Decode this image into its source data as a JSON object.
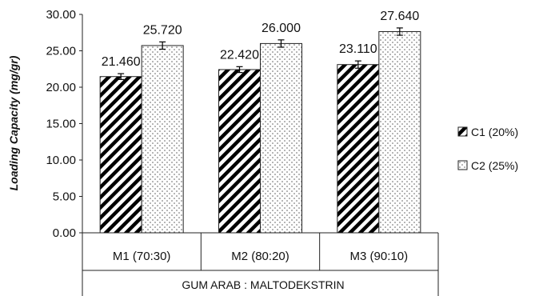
{
  "chart_data": {
    "type": "bar",
    "title": "",
    "xlabel": "GUM ARAB : MALTODEKSTRIN",
    "ylabel": "Loading Capacity (mg/gr)",
    "ylim": [
      0,
      30
    ],
    "yticks": [
      "0.00",
      "5.00",
      "10.00",
      "15.00",
      "20.00",
      "25.00",
      "30.00"
    ],
    "ytick_values": [
      0,
      5,
      10,
      15,
      20,
      25,
      30
    ],
    "categories": [
      "M1 (70:30)",
      "M2 (80:20)",
      "M3 (90:10)"
    ],
    "series": [
      {
        "name": "C1 (20%)",
        "pattern": "diagonal-stripes",
        "values": [
          21.46,
          22.42,
          23.11
        ],
        "labels": [
          "21.460",
          "22.420",
          "23.110"
        ],
        "errors": [
          0.4,
          0.4,
          0.5
        ]
      },
      {
        "name": "C2 (25%)",
        "pattern": "dots",
        "values": [
          25.72,
          26.0,
          27.64
        ],
        "labels": [
          "25.720",
          "26.000",
          "27.640"
        ],
        "errors": [
          0.5,
          0.5,
          0.5
        ]
      }
    ],
    "grid": false,
    "legend_position": "right",
    "colors": {
      "stripe": "#000000",
      "dot": "#555555",
      "outline": "#222222",
      "bar_bg": "#ffffff"
    }
  }
}
